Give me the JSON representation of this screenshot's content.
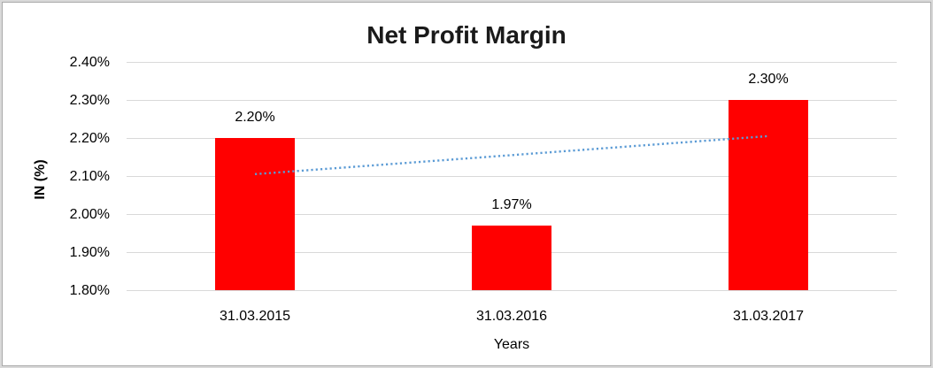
{
  "chart_data": {
    "type": "bar",
    "title": "Net Profit Margin",
    "xlabel": "Years",
    "ylabel": "IN (%)",
    "categories": [
      "31.03.2015",
      "31.03.2016",
      "31.03.2017"
    ],
    "values": [
      2.2,
      1.97,
      2.3
    ],
    "data_labels": [
      "2.20%",
      "1.97%",
      "2.30%"
    ],
    "yticks": [
      {
        "value": 1.8,
        "label": "1.80%"
      },
      {
        "value": 1.9,
        "label": "1.90%"
      },
      {
        "value": 2.0,
        "label": "2.00%"
      },
      {
        "value": 2.1,
        "label": "2.10%"
      },
      {
        "value": 2.2,
        "label": "2.20%"
      },
      {
        "value": 2.3,
        "label": "2.30%"
      },
      {
        "value": 2.4,
        "label": "2.40%"
      }
    ],
    "ylim": [
      1.8,
      2.4
    ],
    "grid": true,
    "legend": "none",
    "bar_color": "#ff0000",
    "gridline_color": "#d9d9d9",
    "trendline": {
      "type": "linear",
      "style": "dotted",
      "color": "#5b9bd5",
      "y_start": 2.105,
      "y_end": 2.205
    }
  }
}
